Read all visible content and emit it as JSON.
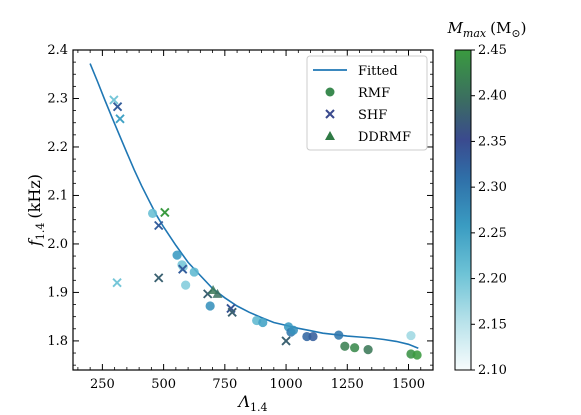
{
  "chart_data": {
    "type": "scatter",
    "xlabel_main": "Λ",
    "xlabel_sub": "1.4",
    "ylabel_main": "f",
    "ylabel_sub": "1.4",
    "ylabel_unit": "(kHz)",
    "xlim": [
      130,
      1600
    ],
    "ylim": [
      1.74,
      2.4
    ],
    "xticks": [
      250,
      500,
      750,
      1000,
      1250,
      1500
    ],
    "xtick_labels": [
      "250",
      "500",
      "750",
      "1000",
      "1250",
      "1500"
    ],
    "yticks": [
      1.8,
      1.9,
      2.0,
      2.1,
      2.2,
      2.3,
      2.4
    ],
    "ytick_labels": [
      "1.8",
      "1.9",
      "2.0",
      "2.1",
      "2.2",
      "2.3",
      "2.4"
    ],
    "legend": {
      "placement": "top-right",
      "entries": [
        {
          "label": "Fitted",
          "marker": "line"
        },
        {
          "label": "RMF",
          "marker": "circle"
        },
        {
          "label": "SHF",
          "marker": "x"
        },
        {
          "label": "DDRMF",
          "marker": "triangle"
        }
      ]
    },
    "colorbar": {
      "title_main": "M",
      "title_sub": "max",
      "title_unit": "(M",
      "title_unit_symbol": "⊙",
      "title_unit_close": ")",
      "min": 2.1,
      "max": 2.45,
      "ticks": [
        2.1,
        2.15,
        2.2,
        2.25,
        2.3,
        2.35,
        2.4,
        2.45
      ],
      "tick_labels": [
        "2.10",
        "2.15",
        "2.20",
        "2.25",
        "2.30",
        "2.35",
        "2.40",
        "2.45"
      ],
      "colorscale": [
        [
          0.0,
          "#f7fcfd"
        ],
        [
          0.15,
          "#b8e2ea"
        ],
        [
          0.3,
          "#6ec3d6"
        ],
        [
          0.45,
          "#3a9cc2"
        ],
        [
          0.6,
          "#2f6fa8"
        ],
        [
          0.72,
          "#3a4a8e"
        ],
        [
          0.84,
          "#3b6c62"
        ],
        [
          1.0,
          "#3a9a3f"
        ]
      ]
    },
    "fitted_curve": {
      "x": [
        200,
        230,
        260,
        290,
        320,
        350,
        380,
        410,
        440,
        470,
        500,
        550,
        600,
        650,
        700,
        750,
        800,
        850,
        900,
        950,
        1000,
        1050,
        1100,
        1150,
        1200,
        1250,
        1300,
        1350,
        1400,
        1450,
        1500,
        1540
      ],
      "y": [
        2.372,
        2.335,
        2.297,
        2.26,
        2.224,
        2.188,
        2.153,
        2.12,
        2.09,
        2.06,
        2.035,
        1.997,
        1.962,
        1.935,
        1.908,
        1.889,
        1.872,
        1.859,
        1.848,
        1.838,
        1.832,
        1.826,
        1.821,
        1.816,
        1.813,
        1.81,
        1.808,
        1.806,
        1.803,
        1.799,
        1.793,
        1.785
      ],
      "color": "#1f77b4"
    },
    "series": [
      {
        "name": "RMF",
        "marker": "circle",
        "points": [
          {
            "x": 455,
            "y": 2.063,
            "m": 2.21
          },
          {
            "x": 555,
            "y": 1.977,
            "m": 2.26
          },
          {
            "x": 575,
            "y": 1.957,
            "m": 2.2
          },
          {
            "x": 580,
            "y": 1.953,
            "m": 2.19
          },
          {
            "x": 590,
            "y": 1.915,
            "m": 2.19
          },
          {
            "x": 625,
            "y": 1.942,
            "m": 2.22
          },
          {
            "x": 690,
            "y": 1.872,
            "m": 2.27
          },
          {
            "x": 880,
            "y": 1.842,
            "m": 2.22
          },
          {
            "x": 905,
            "y": 1.838,
            "m": 2.25
          },
          {
            "x": 1010,
            "y": 1.829,
            "m": 2.26
          },
          {
            "x": 1020,
            "y": 1.818,
            "m": 2.3
          },
          {
            "x": 1030,
            "y": 1.822,
            "m": 2.27
          },
          {
            "x": 1085,
            "y": 1.809,
            "m": 2.32
          },
          {
            "x": 1110,
            "y": 1.809,
            "m": 2.33
          },
          {
            "x": 1215,
            "y": 1.812,
            "m": 2.3
          },
          {
            "x": 1240,
            "y": 1.789,
            "m": 2.42
          },
          {
            "x": 1280,
            "y": 1.786,
            "m": 2.43
          },
          {
            "x": 1335,
            "y": 1.782,
            "m": 2.41
          },
          {
            "x": 1510,
            "y": 1.811,
            "m": 2.17
          },
          {
            "x": 1510,
            "y": 1.773,
            "m": 2.44
          },
          {
            "x": 1535,
            "y": 1.771,
            "m": 2.45
          }
        ]
      },
      {
        "name": "SHF",
        "marker": "x",
        "points": [
          {
            "x": 297,
            "y": 2.297,
            "m": 2.2
          },
          {
            "x": 312,
            "y": 2.283,
            "m": 2.33
          },
          {
            "x": 322,
            "y": 2.258,
            "m": 2.25
          },
          {
            "x": 310,
            "y": 1.92,
            "m": 2.2
          },
          {
            "x": 480,
            "y": 2.038,
            "m": 2.33
          },
          {
            "x": 480,
            "y": 1.93,
            "m": 2.38
          },
          {
            "x": 505,
            "y": 2.065,
            "m": 2.45
          },
          {
            "x": 578,
            "y": 1.948,
            "m": 2.33
          },
          {
            "x": 680,
            "y": 1.897,
            "m": 2.38
          },
          {
            "x": 775,
            "y": 1.867,
            "m": 2.34
          },
          {
            "x": 780,
            "y": 1.859,
            "m": 2.38
          },
          {
            "x": 1000,
            "y": 1.8,
            "m": 2.38
          }
        ]
      },
      {
        "name": "DDRMF",
        "marker": "triangle",
        "points": [
          {
            "x": 702,
            "y": 1.905,
            "m": 2.41
          },
          {
            "x": 720,
            "y": 1.897,
            "m": 2.4
          }
        ]
      }
    ]
  }
}
